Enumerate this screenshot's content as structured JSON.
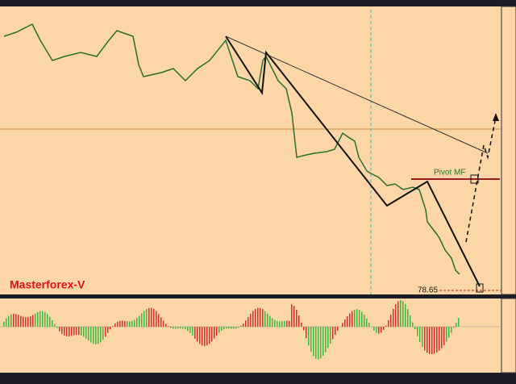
{
  "annotations": {
    "brand": "Masterforex-V",
    "price_label": "78.65",
    "pivot_label": "Pivot MF"
  }
}
